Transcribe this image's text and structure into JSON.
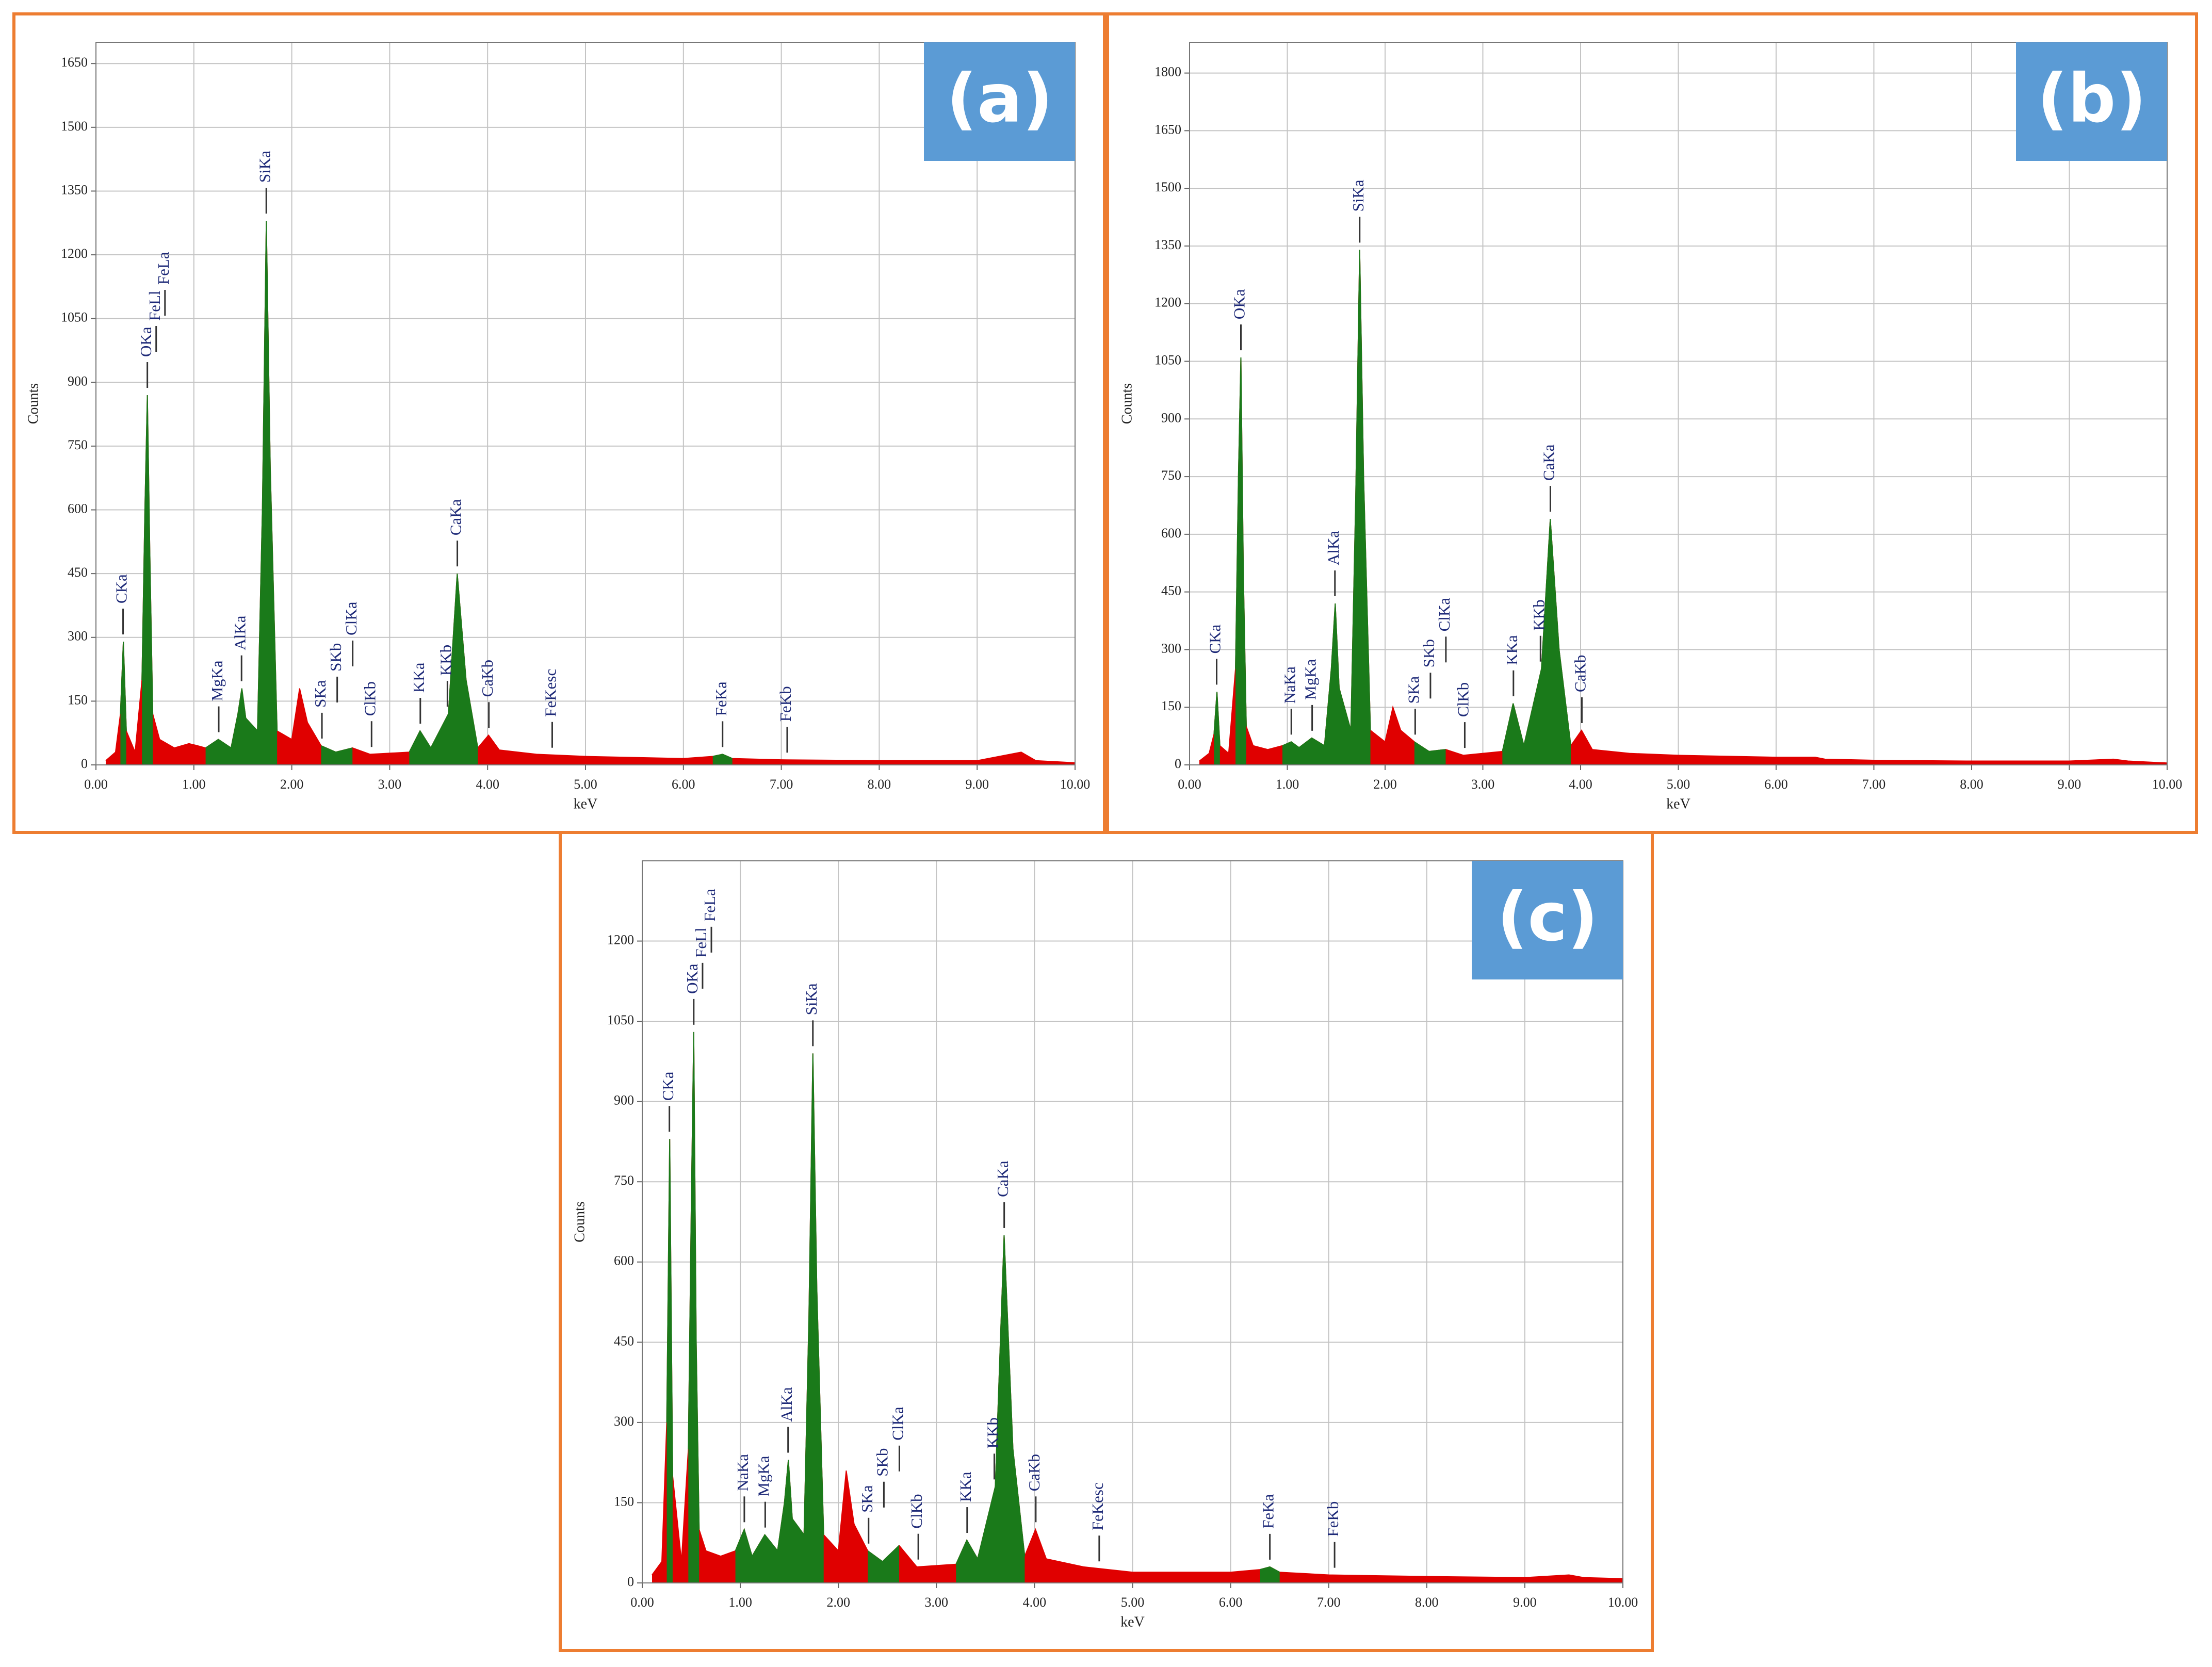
{
  "chart_data": [
    {
      "type": "area",
      "panel_label": "(a)",
      "xlabel": "keV",
      "ylabel": "Counts",
      "x": [
        0.1,
        0.2,
        0.25,
        0.28,
        0.31,
        0.4,
        0.47,
        0.5,
        0.525,
        0.55,
        0.58,
        0.65,
        0.8,
        0.95,
        1.04,
        1.12,
        1.25,
        1.38,
        1.45,
        1.49,
        1.53,
        1.65,
        1.7,
        1.74,
        1.78,
        1.85,
        2.0,
        2.08,
        2.16,
        2.3,
        2.45,
        2.62,
        2.8,
        3.2,
        3.31,
        3.42,
        3.6,
        3.69,
        3.78,
        3.9,
        4.01,
        4.12,
        4.5,
        5.0,
        6.0,
        6.3,
        6.4,
        6.5,
        7.0,
        8.0,
        9.0,
        9.45,
        9.6,
        10.0
      ],
      "series": [
        {
          "color": "#e00000",
          "values": [
            10,
            30,
            120,
            290,
            80,
            30,
            200,
            600,
            870,
            500,
            120,
            60,
            40,
            50,
            45,
            40,
            60,
            40,
            120,
            180,
            110,
            80,
            600,
            1280,
            700,
            80,
            60,
            180,
            100,
            45,
            30,
            40,
            25,
            30,
            80,
            40,
            120,
            450,
            200,
            40,
            70,
            35,
            25,
            20,
            15,
            20,
            25,
            15,
            12,
            10,
            10,
            30,
            10,
            5
          ]
        },
        {
          "color": "#1a7a1a",
          "values": [
            null,
            null,
            120,
            290,
            80,
            null,
            200,
            600,
            870,
            500,
            120,
            null,
            null,
            null,
            null,
            40,
            60,
            40,
            120,
            180,
            110,
            80,
            600,
            1280,
            700,
            80,
            null,
            null,
            null,
            45,
            30,
            40,
            null,
            30,
            80,
            40,
            120,
            450,
            200,
            40,
            null,
            null,
            null,
            null,
            null,
            20,
            25,
            15,
            null,
            null,
            null,
            null,
            null,
            null
          ]
        }
      ],
      "annotations": [
        {
          "text": "CKa",
          "x": 0.277
        },
        {
          "text": "OKa",
          "x": 0.525
        },
        {
          "text": "FeLl",
          "x": 0.615
        },
        {
          "text": "FeLa",
          "x": 0.705
        },
        {
          "text": "MgKa",
          "x": 1.254
        },
        {
          "text": "AlKa",
          "x": 1.487
        },
        {
          "text": "SiKa",
          "x": 1.74
        },
        {
          "text": "SKa",
          "x": 2.308
        },
        {
          "text": "SKb",
          "x": 2.464
        },
        {
          "text": "ClKa",
          "x": 2.622
        },
        {
          "text": "ClKb",
          "x": 2.815
        },
        {
          "text": "KKa",
          "x": 3.313
        },
        {
          "text": "KKb",
          "x": 3.59
        },
        {
          "text": "CaKa",
          "x": 3.691
        },
        {
          "text": "CaKb",
          "x": 4.013
        },
        {
          "text": "FeKesc",
          "x": 4.66
        },
        {
          "text": "FeKa",
          "x": 6.4
        },
        {
          "text": "FeKb",
          "x": 7.06
        }
      ],
      "xlim": [
        0,
        10
      ],
      "ylim": [
        0,
        1700
      ],
      "xticks": [
        {
          "value": 0,
          "label": "0.00"
        },
        {
          "value": 1,
          "label": "1.00"
        },
        {
          "value": 2,
          "label": "2.00"
        },
        {
          "value": 3,
          "label": "3.00"
        },
        {
          "value": 4,
          "label": "4.00"
        },
        {
          "value": 5,
          "label": "5.00"
        },
        {
          "value": 6,
          "label": "6.00"
        },
        {
          "value": 7,
          "label": "7.00"
        },
        {
          "value": 8,
          "label": "8.00"
        },
        {
          "value": 9,
          "label": "9.00"
        },
        {
          "value": 10,
          "label": "10.00"
        }
      ],
      "yticks": [
        0,
        150,
        300,
        450,
        600,
        750,
        900,
        1050,
        1200,
        1350,
        1500,
        1650
      ],
      "grid": true
    },
    {
      "type": "area",
      "panel_label": "(b)",
      "xlabel": "keV",
      "ylabel": "Counts",
      "x": [
        0.1,
        0.2,
        0.25,
        0.28,
        0.31,
        0.4,
        0.47,
        0.5,
        0.525,
        0.55,
        0.58,
        0.65,
        0.8,
        0.95,
        1.04,
        1.12,
        1.25,
        1.38,
        1.45,
        1.49,
        1.53,
        1.65,
        1.7,
        1.74,
        1.78,
        1.85,
        2.0,
        2.08,
        2.16,
        2.3,
        2.45,
        2.62,
        2.8,
        3.2,
        3.31,
        3.42,
        3.6,
        3.69,
        3.78,
        3.9,
        4.01,
        4.12,
        4.5,
        5.0,
        6.0,
        6.3,
        6.4,
        6.5,
        7.0,
        8.0,
        9.0,
        9.45,
        9.6,
        10.0
      ],
      "series": [
        {
          "color": "#e00000",
          "values": [
            10,
            30,
            80,
            190,
            50,
            30,
            250,
            750,
            1060,
            500,
            100,
            50,
            40,
            50,
            60,
            45,
            70,
            50,
            250,
            420,
            200,
            90,
            700,
            1340,
            750,
            90,
            60,
            150,
            90,
            60,
            35,
            40,
            25,
            35,
            160,
            50,
            250,
            640,
            300,
            50,
            90,
            40,
            30,
            25,
            20,
            20,
            20,
            15,
            12,
            10,
            10,
            15,
            10,
            5
          ]
        },
        {
          "color": "#1a7a1a",
          "values": [
            null,
            null,
            80,
            190,
            50,
            null,
            250,
            750,
            1060,
            500,
            100,
            null,
            null,
            50,
            60,
            45,
            70,
            50,
            250,
            420,
            200,
            90,
            700,
            1340,
            750,
            90,
            null,
            null,
            null,
            60,
            35,
            40,
            null,
            35,
            160,
            50,
            250,
            640,
            300,
            50,
            null,
            null,
            null,
            null,
            null,
            null,
            null,
            null,
            null,
            null,
            null,
            null,
            null,
            null
          ]
        }
      ],
      "annotations": [
        {
          "text": "CKa",
          "x": 0.277
        },
        {
          "text": "OKa",
          "x": 0.525
        },
        {
          "text": "NaKa",
          "x": 1.041
        },
        {
          "text": "MgKa",
          "x": 1.254
        },
        {
          "text": "AlKa",
          "x": 1.487
        },
        {
          "text": "SiKa",
          "x": 1.74
        },
        {
          "text": "SKa",
          "x": 2.308
        },
        {
          "text": "SKb",
          "x": 2.464
        },
        {
          "text": "ClKa",
          "x": 2.622
        },
        {
          "text": "ClKb",
          "x": 2.815
        },
        {
          "text": "KKa",
          "x": 3.313
        },
        {
          "text": "KKb",
          "x": 3.59
        },
        {
          "text": "CaKa",
          "x": 3.691
        },
        {
          "text": "CaKb",
          "x": 4.013
        }
      ],
      "xlim": [
        0,
        10
      ],
      "ylim": [
        0,
        1880
      ],
      "xticks": [
        {
          "value": 0,
          "label": "0.00"
        },
        {
          "value": 1,
          "label": "1.00"
        },
        {
          "value": 2,
          "label": "2.00"
        },
        {
          "value": 3,
          "label": "3.00"
        },
        {
          "value": 4,
          "label": "4.00"
        },
        {
          "value": 5,
          "label": "5.00"
        },
        {
          "value": 6,
          "label": "6.00"
        },
        {
          "value": 7,
          "label": "7.00"
        },
        {
          "value": 8,
          "label": "8.00"
        },
        {
          "value": 9,
          "label": "9.00"
        },
        {
          "value": 10,
          "label": "10.00"
        }
      ],
      "yticks": [
        0,
        150,
        300,
        450,
        600,
        750,
        900,
        1050,
        1200,
        1350,
        1500,
        1650,
        1800
      ],
      "grid": true
    },
    {
      "type": "area",
      "panel_label": "(c)",
      "xlabel": "keV",
      "ylabel": "Counts",
      "x": [
        0.1,
        0.2,
        0.25,
        0.28,
        0.31,
        0.4,
        0.47,
        0.5,
        0.525,
        0.55,
        0.58,
        0.65,
        0.8,
        0.95,
        1.04,
        1.12,
        1.25,
        1.38,
        1.45,
        1.49,
        1.53,
        1.65,
        1.7,
        1.74,
        1.78,
        1.85,
        2.0,
        2.08,
        2.16,
        2.3,
        2.45,
        2.62,
        2.8,
        3.2,
        3.31,
        3.42,
        3.6,
        3.69,
        3.78,
        3.9,
        4.01,
        4.12,
        4.5,
        5.0,
        6.0,
        6.3,
        6.4,
        6.5,
        7.0,
        8.0,
        9.0,
        9.45,
        9.6,
        10.0
      ],
      "series": [
        {
          "color": "#e00000",
          "values": [
            15,
            40,
            300,
            830,
            200,
            40,
            250,
            700,
            1030,
            450,
            100,
            60,
            50,
            60,
            100,
            50,
            90,
            60,
            150,
            230,
            120,
            90,
            500,
            990,
            550,
            90,
            60,
            210,
            110,
            60,
            40,
            70,
            30,
            35,
            80,
            45,
            180,
            650,
            250,
            50,
            100,
            45,
            30,
            20,
            20,
            25,
            30,
            20,
            15,
            12,
            10,
            15,
            10,
            8
          ]
        },
        {
          "color": "#1a7a1a",
          "values": [
            null,
            null,
            300,
            830,
            200,
            null,
            250,
            700,
            1030,
            450,
            100,
            null,
            null,
            60,
            100,
            50,
            90,
            60,
            150,
            230,
            120,
            90,
            500,
            990,
            550,
            90,
            null,
            null,
            null,
            60,
            40,
            70,
            null,
            35,
            80,
            45,
            180,
            650,
            250,
            50,
            null,
            null,
            null,
            null,
            null,
            25,
            30,
            20,
            null,
            null,
            null,
            null,
            null,
            null
          ]
        }
      ],
      "annotations": [
        {
          "text": "CKa",
          "x": 0.277
        },
        {
          "text": "OKa",
          "x": 0.525
        },
        {
          "text": "FeLl",
          "x": 0.615
        },
        {
          "text": "FeLa",
          "x": 0.705
        },
        {
          "text": "NaKa",
          "x": 1.041
        },
        {
          "text": "MgKa",
          "x": 1.254
        },
        {
          "text": "AlKa",
          "x": 1.487
        },
        {
          "text": "SiKa",
          "x": 1.74
        },
        {
          "text": "SKa",
          "x": 2.308
        },
        {
          "text": "SKb",
          "x": 2.464
        },
        {
          "text": "ClKa",
          "x": 2.622
        },
        {
          "text": "ClKb",
          "x": 2.815
        },
        {
          "text": "KKa",
          "x": 3.313
        },
        {
          "text": "KKb",
          "x": 3.59
        },
        {
          "text": "CaKa",
          "x": 3.691
        },
        {
          "text": "CaKb",
          "x": 4.013
        },
        {
          "text": "FeKesc",
          "x": 4.66
        },
        {
          "text": "FeKa",
          "x": 6.4
        },
        {
          "text": "FeKb",
          "x": 7.06
        }
      ],
      "xlim": [
        0,
        10
      ],
      "ylim": [
        0,
        1350
      ],
      "xticks": [
        {
          "value": 0,
          "label": "0.00"
        },
        {
          "value": 1,
          "label": "1.00"
        },
        {
          "value": 2,
          "label": "2.00"
        },
        {
          "value": 3,
          "label": "3.00"
        },
        {
          "value": 4,
          "label": "4.00"
        },
        {
          "value": 5,
          "label": "5.00"
        },
        {
          "value": 6,
          "label": "6.00"
        },
        {
          "value": 7,
          "label": "7.00"
        },
        {
          "value": 8,
          "label": "8.00"
        },
        {
          "value": 9,
          "label": "9.00"
        },
        {
          "value": 10,
          "label": "10.00"
        }
      ],
      "yticks": [
        0,
        150,
        300,
        450,
        600,
        750,
        900,
        1050,
        1200
      ],
      "grid": true
    }
  ]
}
